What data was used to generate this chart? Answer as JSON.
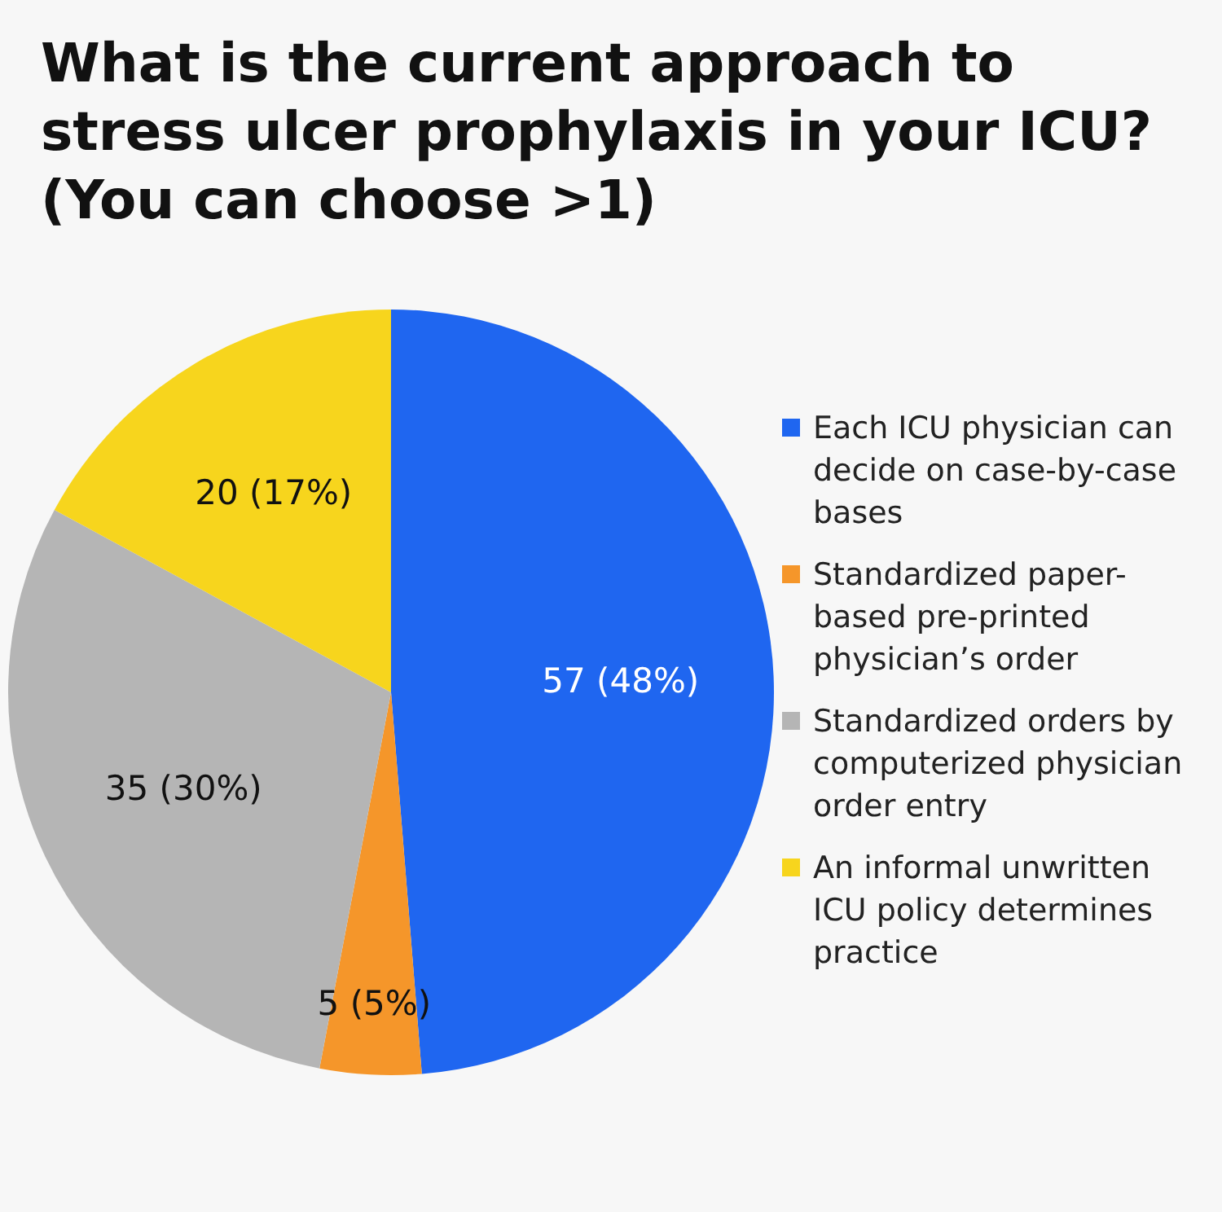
{
  "chart_data": {
    "type": "pie",
    "title": "What is the current approach to stress ulcer prophylaxis in your ICU? (You can choose >1)",
    "categories": [
      "Each ICU physician can decide on case-by-case bases",
      "Standardized paper-based pre-printed physician’s order",
      "Standardized orders by computerized physician order entry",
      "An informal unwritten ICU policy determines practice"
    ],
    "values": [
      57,
      5,
      35,
      20
    ],
    "value_labels": [
      "57 (48%)",
      "5 (5%)",
      "35 (30%)",
      "20 (17%)"
    ],
    "colors": [
      "#1f66f0",
      "#f5962a",
      "#b5b5b5",
      "#f7d51d"
    ],
    "legend": "right"
  }
}
